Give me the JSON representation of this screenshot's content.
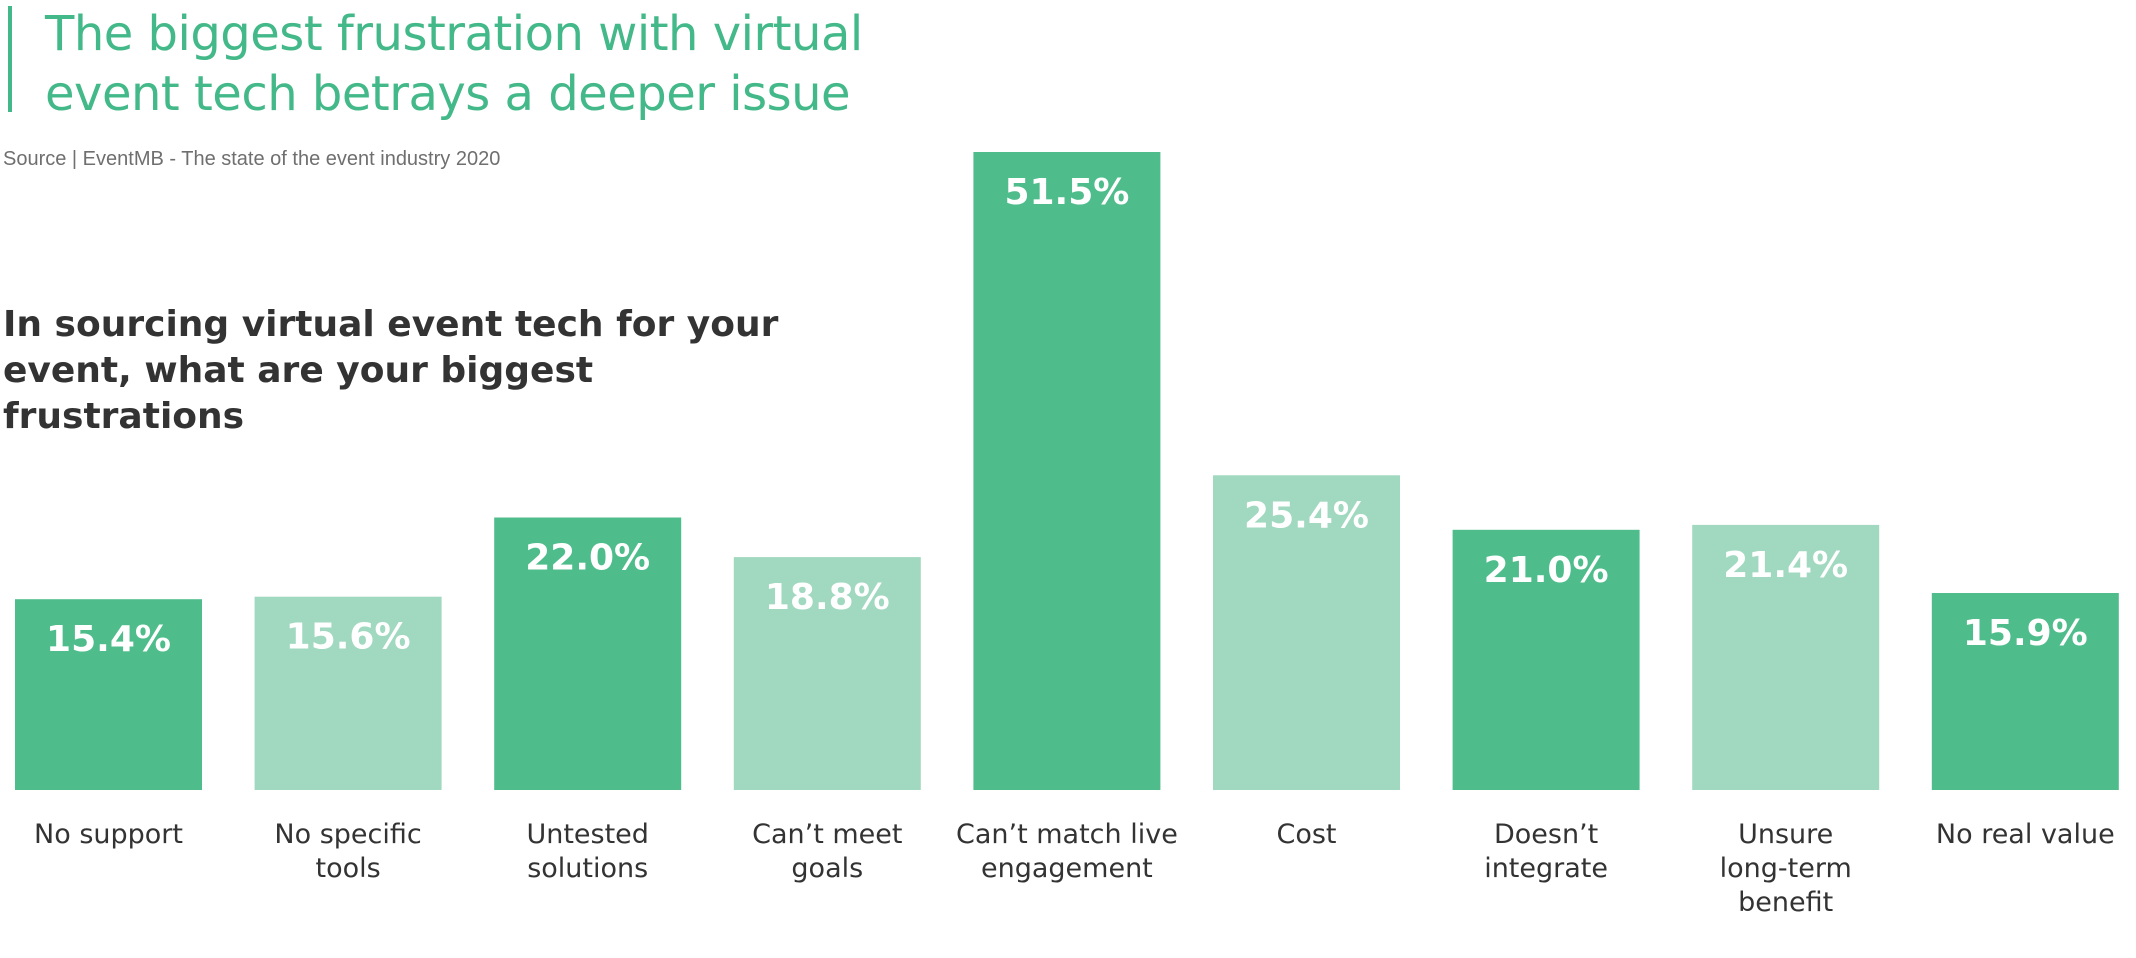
{
  "header": {
    "title_line1": "The biggest frustration with virtual",
    "title_line2": "event tech betrays a deeper issue",
    "source": "Source | EventMB - The state of the event industry 2020",
    "question_line1": "In sourcing virtual event tech for your",
    "question_line2": "event, what are your biggest frustrations"
  },
  "colors": {
    "dark": "#4fbd8b",
    "light": "#a1d8c0",
    "title": "#43b888",
    "text": "#333333"
  },
  "chart_data": {
    "type": "bar",
    "categories": [
      [
        "No support"
      ],
      [
        "No specific",
        "tools"
      ],
      [
        "Untested",
        "solutions"
      ],
      [
        "Can’t meet",
        "goals"
      ],
      [
        "Can’t match live",
        "engagement"
      ],
      [
        "Cost"
      ],
      [
        "Doesn’t",
        "integrate"
      ],
      [
        "Unsure",
        "long-term",
        "benefit"
      ],
      [
        "No real value"
      ]
    ],
    "values": [
      15.4,
      15.6,
      22.0,
      18.8,
      51.5,
      25.4,
      21.0,
      21.4,
      15.9
    ],
    "value_labels": [
      "15.4%",
      "15.6%",
      "22.0%",
      "18.8%",
      "51.5%",
      "25.4%",
      "21.0%",
      "21.4%",
      "15.9%"
    ],
    "bar_shades": [
      "dark",
      "light",
      "dark",
      "light",
      "dark",
      "light",
      "dark",
      "light",
      "dark"
    ],
    "unit": "%",
    "ylim": [
      0,
      51.5
    ],
    "grid": false,
    "legend": "none"
  }
}
